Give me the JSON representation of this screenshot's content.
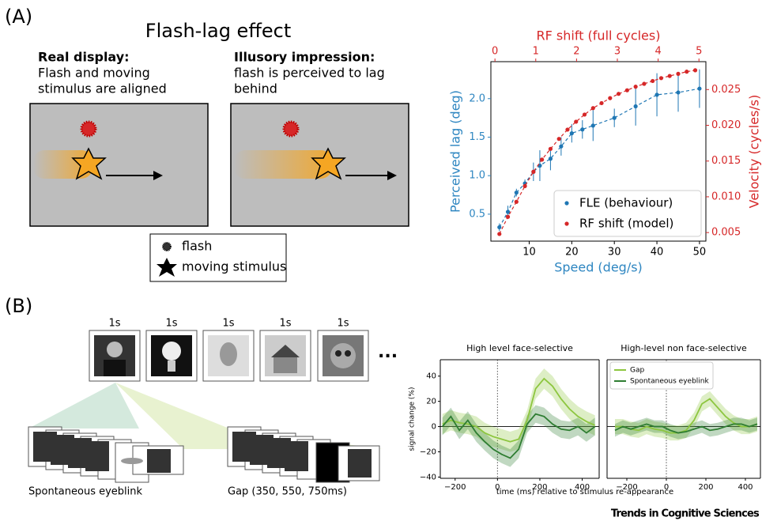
{
  "panel_a": {
    "label": "(A)",
    "title": "Flash-lag effect",
    "real_heading": "Real display:",
    "real_text": [
      "Flash and moving",
      "stimulus are aligned"
    ],
    "illusory_heading": "Illusory impression:",
    "illusory_text": [
      "flash is perceived to lag",
      "behind"
    ],
    "legend": [
      "flash",
      "moving stimulus"
    ]
  },
  "panel_b": {
    "label": "(B)",
    "durations": [
      "1s",
      "1s",
      "1s",
      "1s",
      "1s"
    ],
    "more": "...",
    "captions": [
      "Spontaneous eyeblink",
      "Gap (350, 550, 750ms)"
    ],
    "xlabel": "time (ms) relative to stimulus re-appearance"
  },
  "footer": "Trends in Cognitive Sciences",
  "chart_data": [
    {
      "type": "scatter",
      "xlabel": "Speed (deg/s)",
      "x2label": "RF shift (full cycles)",
      "ylabel": "Perceived lag (deg)",
      "y2label": "Velocity (cycles/s)",
      "xlim": [
        1,
        51.5
      ],
      "xticks": [
        10,
        20,
        30,
        40,
        50
      ],
      "x2lim": [
        -0.1,
        5.17
      ],
      "x2ticks": [
        0,
        1,
        2,
        3,
        4,
        5
      ],
      "ylim": [
        0.15,
        2.48
      ],
      "yticks": [
        0.5,
        {
          "value": 1,
          "label": "1.0"
        },
        1.5,
        {
          "value": 2,
          "label": "2.0"
        }
      ],
      "y2lim": [
        0.0038,
        0.0289
      ],
      "y2ticks": [
        0.005,
        {
          "value": 0.01,
          "label": "0.010"
        },
        0.015,
        {
          "value": 0.02,
          "label": "0.020"
        },
        0.025
      ],
      "axis_colors": {
        "y": "#2e86c1",
        "y2": "#d62728",
        "x2": "#d62728"
      },
      "legend": "lower right",
      "series": [
        {
          "name": "FLE (behaviour)",
          "color": "#1f77b4",
          "axis": "y",
          "fit_line": "dashed",
          "x": [
            3,
            5,
            7,
            9,
            11,
            12.5,
            15,
            17.5,
            20,
            22.5,
            25,
            30,
            35,
            40,
            45,
            50
          ],
          "values": [
            0.33,
            0.53,
            0.78,
            0.9,
            1.05,
            1.13,
            1.22,
            1.38,
            1.55,
            1.6,
            1.65,
            1.75,
            1.9,
            2.05,
            2.08,
            2.13
          ],
          "errors": [
            0.05,
            0.08,
            0.05,
            0.05,
            0.12,
            0.2,
            0.15,
            0.12,
            0.12,
            0.12,
            0.2,
            0.12,
            0.25,
            0.28,
            0.25,
            0.25
          ]
        },
        {
          "name": "RF shift (model)",
          "color": "#d62728",
          "axis": "y2",
          "fit_line": "dashed",
          "x": [
            3,
            5,
            7,
            9,
            11,
            13,
            15,
            17,
            19,
            21,
            23,
            25,
            27,
            29,
            31,
            33,
            35,
            37,
            39,
            41,
            43,
            45,
            47,
            49
          ],
          "values": [
            0.0048,
            0.0072,
            0.0093,
            0.0115,
            0.0135,
            0.0152,
            0.0167,
            0.0181,
            0.0194,
            0.0205,
            0.0215,
            0.0224,
            0.0231,
            0.0238,
            0.0244,
            0.0249,
            0.0254,
            0.0258,
            0.0262,
            0.0266,
            0.0269,
            0.0272,
            0.0275,
            0.0277
          ]
        }
      ]
    },
    {
      "type": "line",
      "title": "High level face-selective",
      "ylabel": "signal change (%)",
      "xlim": [
        -270,
        480
      ],
      "xticks": [
        {
          "value": -200,
          "label": "−200"
        },
        0,
        200,
        400
      ],
      "ylim": [
        -41,
        53
      ],
      "yticks": [
        {
          "value": -40,
          "label": "−40"
        },
        {
          "value": -20,
          "label": "−20"
        },
        0,
        20,
        40
      ],
      "vline": 0,
      "hline": 0,
      "x": [
        -260,
        -220,
        -180,
        -140,
        -100,
        -60,
        -20,
        20,
        60,
        100,
        140,
        180,
        220,
        260,
        300,
        340,
        380,
        420,
        460
      ],
      "series": [
        {
          "color": "#8dc63f",
          "ci": 8,
          "values": [
            2,
            5,
            3,
            2,
            0,
            -5,
            -8,
            -10,
            -12,
            -10,
            5,
            30,
            38,
            32,
            22,
            14,
            8,
            4,
            1
          ]
        },
        {
          "color": "#2e7d32",
          "ci": 7,
          "values": [
            0,
            8,
            -3,
            5,
            -5,
            -12,
            -18,
            -22,
            -25,
            -18,
            2,
            10,
            8,
            2,
            -2,
            -3,
            0,
            -5,
            0
          ]
        }
      ]
    },
    {
      "type": "line",
      "title": "High-level non face-selective",
      "xlim": [
        -300,
        476
      ],
      "xticks": [
        {
          "value": -200,
          "label": "−200"
        },
        0,
        200,
        400
      ],
      "ylim": [
        -41,
        53
      ],
      "vline": 0,
      "hline": 0,
      "legend": "upper left",
      "x": [
        -260,
        -220,
        -180,
        -140,
        -100,
        -60,
        -20,
        20,
        60,
        100,
        140,
        180,
        220,
        260,
        300,
        340,
        380,
        420,
        460
      ],
      "series": [
        {
          "name": "Gap",
          "color": "#8dc63f",
          "ci": 6,
          "values": [
            0,
            0,
            -2,
            -3,
            0,
            -2,
            -3,
            -5,
            -5,
            -3,
            5,
            18,
            22,
            15,
            8,
            3,
            0,
            0,
            2
          ]
        },
        {
          "name": "Spontaneous eyeblink",
          "color": "#2e7d32",
          "ci": 5,
          "values": [
            -3,
            0,
            -2,
            0,
            2,
            0,
            0,
            -3,
            -5,
            -4,
            -2,
            0,
            -3,
            -2,
            0,
            2,
            2,
            0,
            2
          ]
        }
      ]
    }
  ]
}
